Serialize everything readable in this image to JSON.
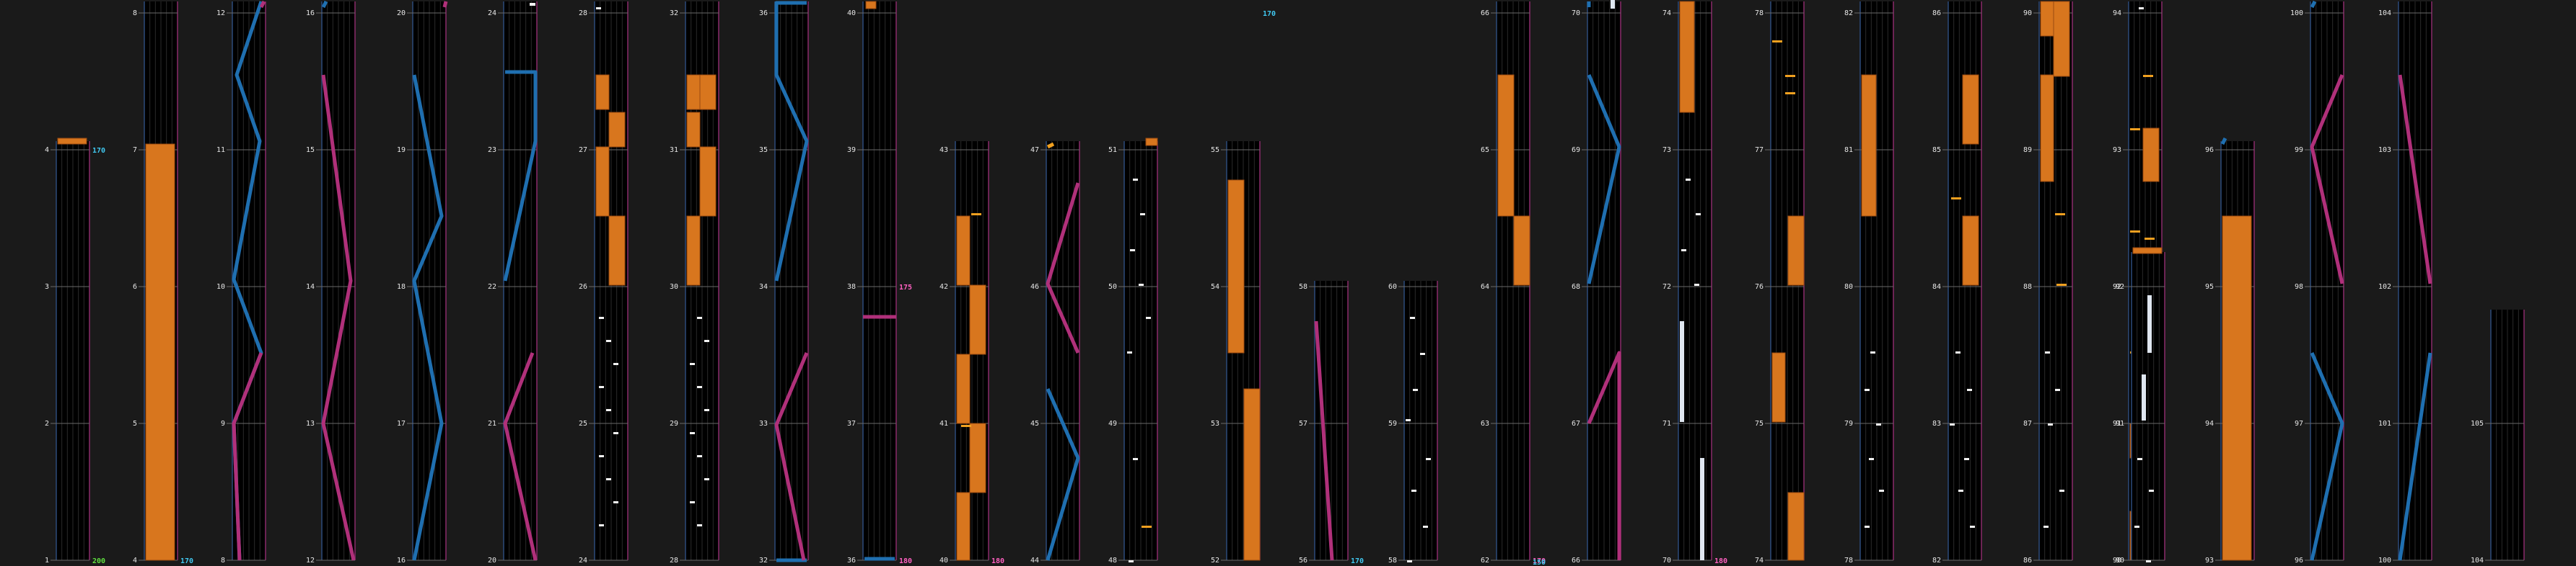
{
  "colors": {
    "background": "#1a1a1a",
    "lane_bg": "#000000",
    "grid_vertical": "#2a2a2a",
    "border_left": "#2c4a7a",
    "border_right": "#8a2a6a",
    "beat_line": "#6a6a6a",
    "hold": "#d8761e",
    "hold_edge": "#9a4a10",
    "note": "#f2f2f2",
    "note_orange": "#f0a020",
    "scratch_blue": "#1f6fb0",
    "scratch_pink": "#b0307a",
    "bpm_cyan": "#40c8f0",
    "bpm_pink": "#ff60c0",
    "bpm_green": "#60e040",
    "label_white": "#e6e6e6",
    "label_gray": "#a0a0a0",
    "freeze_white": "#dfe6f0"
  },
  "lane_icons": {
    "scratch": "turntable-scratch-icon"
  },
  "columns": [
    {
      "id": 0,
      "start": 1,
      "count": 3,
      "bpm": [
        {
          "at": 4,
          "value": "170",
          "tone": "cyan"
        },
        {
          "at": 1,
          "value": "200",
          "tone": "green"
        }
      ],
      "marker_top": {
        "label": "4"
      },
      "holds": [],
      "scratch": []
    },
    {
      "id": 1,
      "start": 4,
      "count": 4,
      "bpm": [
        {
          "at": 4,
          "value": "170",
          "tone": "cyan"
        }
      ],
      "holds": [
        [
          4,
          7
        ]
      ],
      "scratch": []
    },
    {
      "id": 2,
      "start": 8,
      "count": 4,
      "bpm": [],
      "holds": [],
      "scratch": [
        [
          "pink",
          8,
          9,
          10,
          11,
          12
        ]
      ]
    },
    {
      "id": 3,
      "start": 12,
      "count": 4,
      "bpm": [],
      "holds": [],
      "scratch": []
    },
    {
      "id": 4,
      "start": 16,
      "count": 4,
      "bpm": [],
      "holds": [],
      "scratch": []
    },
    {
      "id": 5,
      "start": 20,
      "count": 4,
      "bpm": [],
      "holds": [],
      "scratch": []
    },
    {
      "id": 6,
      "start": 24,
      "count": 4,
      "bpm": [],
      "holds": [],
      "scratch": []
    },
    {
      "id": 7,
      "start": 28,
      "count": 4,
      "bpm": [],
      "holds": [],
      "scratch": []
    },
    {
      "id": 8,
      "start": 32,
      "count": 4,
      "bpm": [],
      "holds": [],
      "scratch": []
    },
    {
      "id": 9,
      "start": 36,
      "count": 4,
      "bpm": [
        {
          "at": 38,
          "value": "175",
          "tone": "pink"
        },
        {
          "at": 36,
          "value": "180",
          "tone": "pink"
        }
      ],
      "holds": [],
      "scratch": []
    },
    {
      "id": 10,
      "start": 40,
      "count": 4,
      "bpm": [
        {
          "at": 40,
          "value": "180",
          "tone": "pink"
        }
      ],
      "holds": [],
      "scratch": []
    },
    {
      "id": 11,
      "start": 44,
      "count": 4,
      "bpm": [],
      "holds": [],
      "scratch": []
    },
    {
      "id": 12,
      "start": 48,
      "count": 4,
      "bpm": [],
      "holds": [],
      "scratch": []
    },
    {
      "id": 13,
      "start": 52,
      "count": 4,
      "bpm": [
        {
          "at": 56,
          "value": "170",
          "tone": "cyan"
        }
      ],
      "holds": [],
      "scratch": []
    },
    {
      "id": 14,
      "start": 56,
      "count": 2,
      "bpm": [
        {
          "at": 56,
          "value": "170",
          "tone": "cyan"
        }
      ],
      "holds": [],
      "scratch": []
    },
    {
      "id": 15,
      "start": 58,
      "count": 4,
      "bpm": [],
      "holds": [],
      "scratch": []
    },
    {
      "id": 16,
      "start": 62,
      "count": 4,
      "bpm": [
        {
          "at": 62,
          "value": "170",
          "tone": "pink"
        },
        {
          "at": 61,
          "value": "150",
          "tone": "cyan"
        }
      ],
      "holds": [],
      "scratch": []
    },
    {
      "id": 17,
      "start": 66,
      "count": 4,
      "bpm": [],
      "holds": [],
      "scratch": []
    },
    {
      "id": 18,
      "start": 70,
      "count": 4,
      "bpm": [
        {
          "at": 70,
          "value": "180",
          "tone": "pink"
        }
      ],
      "holds": [],
      "scratch": []
    },
    {
      "id": 19,
      "start": 74,
      "count": 4,
      "bpm": [],
      "holds": [],
      "scratch": []
    },
    {
      "id": 20,
      "start": 78,
      "count": 4,
      "bpm": [],
      "holds": [],
      "scratch": []
    },
    {
      "id": 21,
      "start": 82,
      "count": 4,
      "bpm": [],
      "holds": [],
      "scratch": []
    },
    {
      "id": 22,
      "start": 86,
      "count": 4,
      "bpm": [],
      "holds": [],
      "scratch": []
    },
    {
      "id": 23,
      "start": 90,
      "count": 4,
      "bpm": [],
      "holds": [],
      "scratch": []
    },
    {
      "id": 24,
      "start": 90,
      "count": 3,
      "bpm": [],
      "holds": [],
      "scratch": []
    },
    {
      "id": 25,
      "start": 93,
      "count": 4,
      "bpm": [],
      "holds": [],
      "scratch": []
    },
    {
      "id": 26,
      "start": 96,
      "count": 4,
      "bpm": [],
      "holds": [],
      "scratch": []
    },
    {
      "id": 27,
      "start": 100,
      "count": 4,
      "bpm": [],
      "holds": [],
      "scratch": []
    },
    {
      "id": 28,
      "start": 104,
      "count": 2,
      "bpm": [],
      "holds": [],
      "scratch": []
    }
  ]
}
